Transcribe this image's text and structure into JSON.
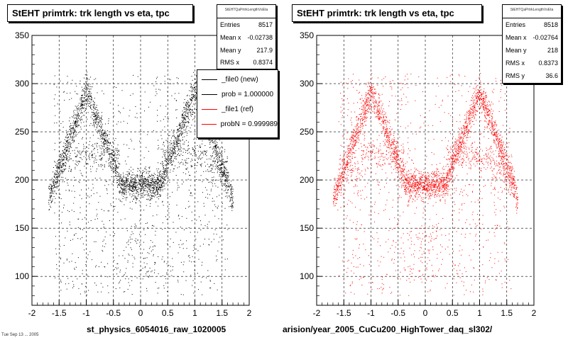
{
  "left": {
    "title": "StEHT primtrk: trk length vs eta, tpc",
    "stats": {
      "header": "StEHTQaPrtrkLengthVsEta",
      "rows": [
        {
          "label": "Entries",
          "value": "8517"
        },
        {
          "label": "Mean x",
          "value": "-0.02738"
        },
        {
          "label": "Mean y",
          "value": "217.9"
        },
        {
          "label": "RMS x",
          "value": "0.8374"
        }
      ]
    },
    "legend": [
      {
        "label": "_file0 (new)",
        "color": "#000000"
      },
      {
        "label": "prob = 1.000000",
        "color": "#000000"
      },
      {
        "label": "_file1 (ref)",
        "color": "#ff0000"
      },
      {
        "label": "probN = 0.999989",
        "color": "#ff0000"
      }
    ],
    "xcaption": "st_physics_6054016_raw_1020005",
    "corner": "Tue Sep 13 ... 2005"
  },
  "right": {
    "title": "StEHT primtrk: trk length vs eta, tpc",
    "stats": {
      "header": "StEHTQaPrtrkLengthVsEta",
      "rows": [
        {
          "label": "Entries",
          "value": "8518"
        },
        {
          "label": "Mean x",
          "value": "-0.02764"
        },
        {
          "label": "Mean y",
          "value": "218"
        },
        {
          "label": "RMS x",
          "value": "0.8373"
        },
        {
          "label": "RMS y",
          "value": "36.6"
        }
      ]
    },
    "xcaption": "arision/year_2005_CuCu200_HighTower_daq_sl302/"
  },
  "chart_data": [
    {
      "type": "scatter",
      "title": "StEHT primtrk: trk length vs eta, tpc",
      "xlim": [
        -2,
        2
      ],
      "ylim": [
        70,
        350
      ],
      "xticks": [
        "-2",
        "-1.5",
        "-1",
        "-0.5",
        "0",
        "0.5",
        "1",
        "1.5",
        "2"
      ],
      "yticks": [
        "100",
        "150",
        "200",
        "250",
        "300",
        "350"
      ],
      "grid": true,
      "series": [
        {
          "name": "_file0 (new)",
          "color": "#000000",
          "entries": 8517,
          "mean_x": -0.02738,
          "mean_y": 217.9,
          "rms_x": 0.8374
        }
      ]
    },
    {
      "type": "scatter",
      "title": "StEHT primtrk: trk length vs eta, tpc",
      "xlim": [
        -2,
        2
      ],
      "ylim": [
        70,
        350
      ],
      "xticks": [
        "-2",
        "-1.5",
        "-1",
        "-0.5",
        "0",
        "0.5",
        "1",
        "1.5",
        "2"
      ],
      "yticks": [
        "100",
        "150",
        "200",
        "250",
        "300",
        "350"
      ],
      "grid": true,
      "series": [
        {
          "name": "_file1 (ref)",
          "color": "#ff0000",
          "entries": 8518,
          "mean_x": -0.02764,
          "mean_y": 218,
          "rms_x": 0.8373,
          "rms_y": 36.6
        }
      ]
    }
  ]
}
